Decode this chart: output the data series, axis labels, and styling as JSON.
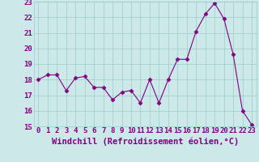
{
  "x": [
    0,
    1,
    2,
    3,
    4,
    5,
    6,
    7,
    8,
    9,
    10,
    11,
    12,
    13,
    14,
    15,
    16,
    17,
    18,
    19,
    20,
    21,
    22,
    23
  ],
  "y": [
    18.0,
    18.3,
    18.3,
    17.3,
    18.1,
    18.2,
    17.5,
    17.5,
    16.7,
    17.2,
    17.3,
    16.5,
    18.0,
    16.5,
    18.0,
    19.3,
    19.3,
    21.1,
    22.2,
    22.9,
    21.9,
    19.6,
    16.0,
    15.1
  ],
  "line_color": "#800080",
  "marker": "D",
  "marker_size": 2.5,
  "background_color": "#cce8e8",
  "grid_color": "#99cccc",
  "xlabel": "Windchill (Refroidissement éolien,°C)",
  "xlabel_fontsize": 7.5,
  "ylim": [
    15,
    23
  ],
  "yticks": [
    15,
    16,
    17,
    18,
    19,
    20,
    21,
    22,
    23
  ],
  "xticks": [
    0,
    1,
    2,
    3,
    4,
    5,
    6,
    7,
    8,
    9,
    10,
    11,
    12,
    13,
    14,
    15,
    16,
    17,
    18,
    19,
    20,
    21,
    22,
    23
  ],
  "tick_fontsize": 6.5
}
